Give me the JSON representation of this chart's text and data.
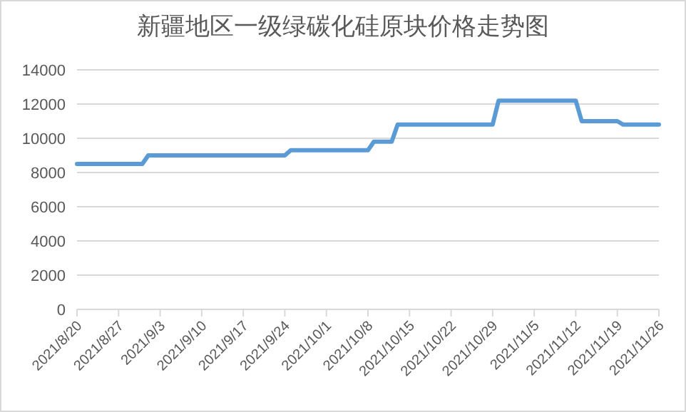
{
  "chart_data": {
    "type": "line",
    "title": "新疆地区一级绿碳化硅原块价格走势图",
    "x": [
      "2021-08-20",
      "2021-08-31",
      "2021-09-01",
      "2021-09-24",
      "2021-09-25",
      "2021-10-08",
      "2021-10-09",
      "2021-10-12",
      "2021-10-13",
      "2021-10-29",
      "2021-10-30",
      "2021-11-12",
      "2021-11-13",
      "2021-11-19",
      "2021-11-20",
      "2021-11-26"
    ],
    "series": [
      {
        "color": "#5b9bd5",
        "values": [
          8500,
          8500,
          9000,
          9000,
          9300,
          9300,
          9800,
          9800,
          10800,
          10800,
          12200,
          12200,
          11000,
          11000,
          10800,
          10800
        ]
      }
    ],
    "xlim": [
      "2021-08-20",
      "2021-11-26"
    ],
    "xticks": [
      {
        "value": "2021-08-20",
        "label": "2021/8/20"
      },
      {
        "value": "2021-08-27",
        "label": "2021/8/27"
      },
      {
        "value": "2021-09-03",
        "label": "2021/9/3"
      },
      {
        "value": "2021-09-10",
        "label": "2021/9/10"
      },
      {
        "value": "2021-09-17",
        "label": "2021/9/17"
      },
      {
        "value": "2021-09-24",
        "label": "2021/9/24"
      },
      {
        "value": "2021-10-01",
        "label": "2021/10/1"
      },
      {
        "value": "2021-10-08",
        "label": "2021/10/8"
      },
      {
        "value": "2021-10-15",
        "label": "2021/10/15"
      },
      {
        "value": "2021-10-22",
        "label": "2021/10/22"
      },
      {
        "value": "2021-10-29",
        "label": "2021/10/29"
      },
      {
        "value": "2021-11-05",
        "label": "2021/11/5"
      },
      {
        "value": "2021-11-12",
        "label": "2021/11/12"
      },
      {
        "value": "2021-11-19",
        "label": "2021/11/19"
      },
      {
        "value": "2021-11-26",
        "label": "2021/11/26"
      }
    ],
    "ylim": [
      0,
      14000
    ],
    "yticks": [
      0,
      2000,
      4000,
      6000,
      8000,
      10000,
      12000,
      14000
    ],
    "grid": "y",
    "marker": "none",
    "line_style": "solid"
  }
}
